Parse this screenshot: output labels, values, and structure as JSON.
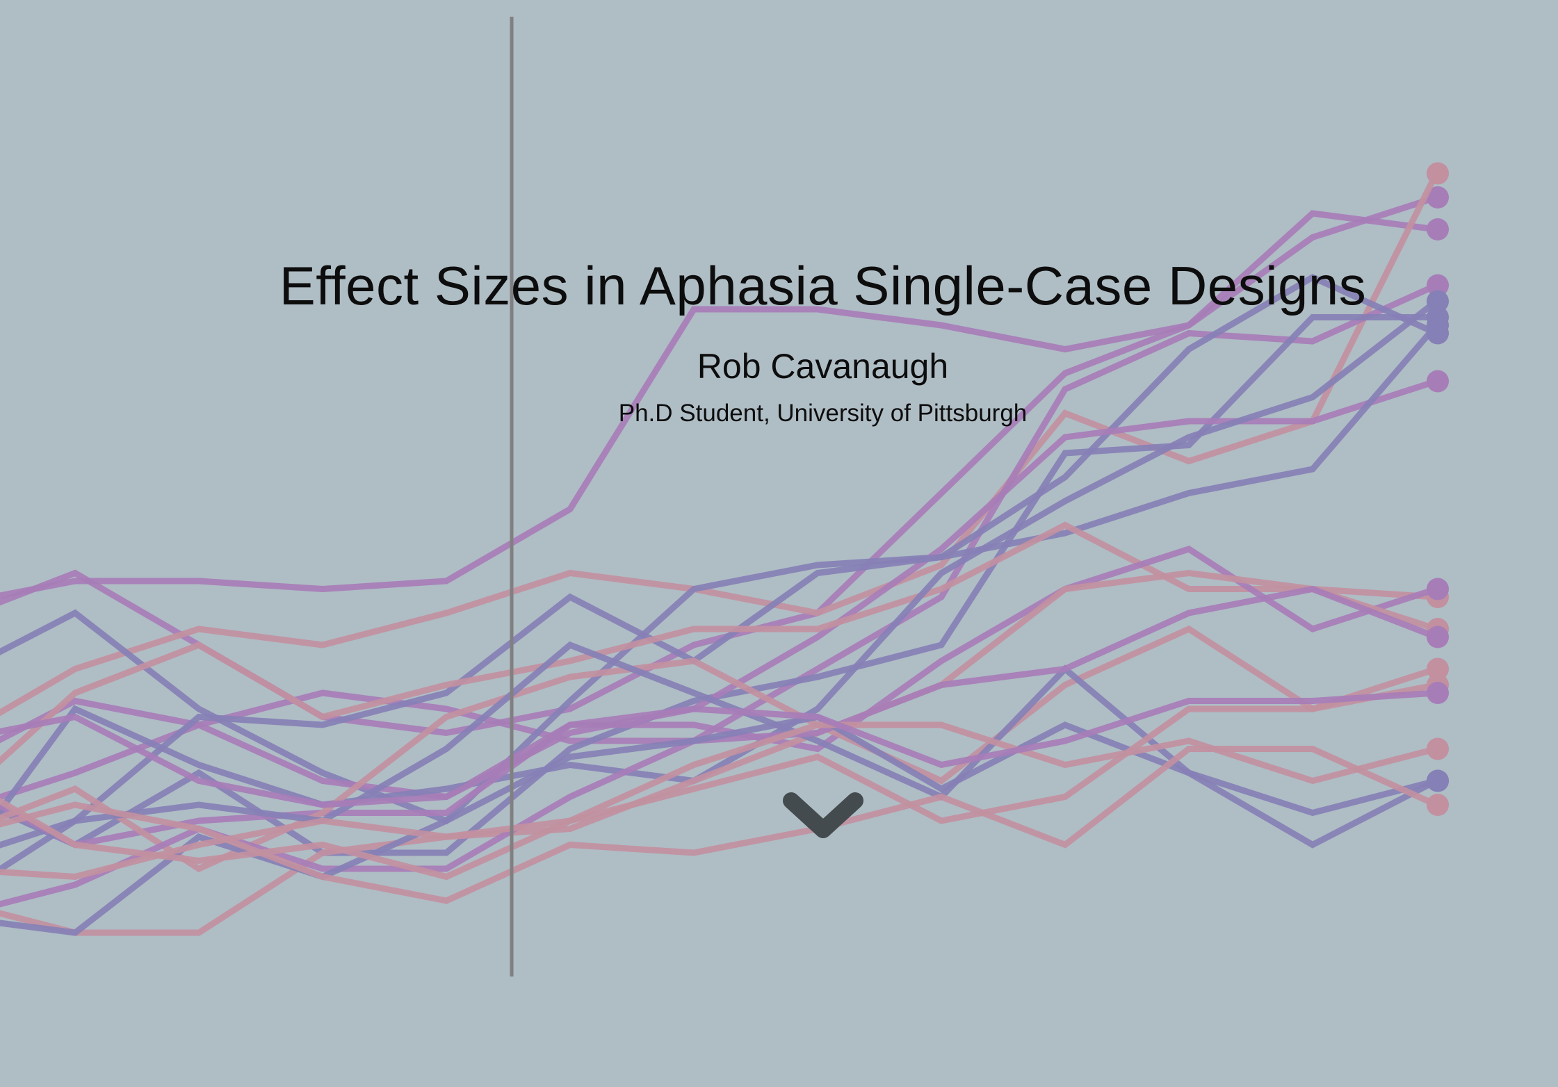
{
  "hero": {
    "title": "Effect Sizes in Aphasia Single-Case Designs",
    "author": "Rob Cavanaugh",
    "affiliation": "Ph.D Student, University of Pittsburgh",
    "scroll_icon": "chevron-down-icon"
  },
  "background_chart": {
    "type": "line",
    "description_role": "decorative single-case design phase lines with baseline/treatment phase divider",
    "x": [
      0,
      1,
      2,
      3,
      4,
      5,
      6,
      7,
      8,
      9,
      10,
      11,
      12
    ],
    "phase_change_after": 4,
    "colors": {
      "purple": "#a77db7",
      "blue": "#8580b5",
      "pink": "#c2909f",
      "divider": "#808080"
    },
    "series": [
      {
        "color": "purple",
        "values": [
          5.3,
          5.6,
          5.6,
          5.5,
          5.6,
          6.5,
          9.0,
          9.0,
          8.8,
          8.5,
          8.8,
          9.9,
          10.4
        ]
      },
      {
        "color": "purple",
        "values": [
          5.1,
          5.7,
          4.8,
          3.9,
          3.7,
          4.0,
          4.8,
          5.2,
          6.7,
          8.2,
          8.8,
          10.2,
          10.0
        ]
      },
      {
        "color": "pink",
        "values": [
          3.6,
          4.5,
          5.0,
          4.8,
          5.2,
          5.7,
          5.5,
          5.2,
          5.8,
          7.7,
          7.1,
          7.6,
          10.7
        ]
      },
      {
        "color": "purple",
        "values": [
          3.3,
          4.1,
          3.8,
          4.2,
          4.0,
          3.6,
          3.6,
          4.5,
          5.4,
          8.0,
          8.7,
          8.6,
          9.3
        ]
      },
      {
        "color": "blue",
        "values": [
          3.0,
          2.3,
          3.2,
          2.2,
          2.2,
          3.5,
          4.1,
          4.4,
          4.8,
          7.2,
          7.3,
          8.9,
          8.9
        ]
      },
      {
        "color": "blue",
        "values": [
          4.4,
          5.2,
          4.0,
          3.2,
          2.6,
          4.1,
          5.5,
          5.8,
          5.9,
          6.9,
          8.5,
          9.4,
          8.7
        ]
      },
      {
        "color": "purple",
        "values": [
          2.7,
          3.2,
          3.8,
          3.1,
          2.9,
          3.8,
          4.0,
          4.9,
          6.0,
          7.4,
          7.6,
          7.6,
          8.1
        ]
      },
      {
        "color": "blue",
        "values": [
          2.1,
          2.6,
          3.9,
          3.8,
          4.2,
          5.4,
          4.6,
          5.7,
          5.9,
          6.2,
          6.7,
          7.0,
          8.8
        ]
      },
      {
        "color": "pink",
        "values": [
          2.8,
          4.2,
          4.8,
          3.9,
          4.3,
          4.6,
          5.0,
          5.0,
          5.5,
          6.3,
          5.5,
          5.5,
          5.4
        ]
      },
      {
        "color": "blue",
        "values": [
          1.9,
          4.0,
          3.3,
          2.8,
          3.0,
          3.3,
          3.1,
          4.0,
          5.7,
          6.6,
          7.4,
          7.9,
          9.1
        ]
      },
      {
        "color": "purple",
        "values": [
          3.1,
          2.3,
          2.6,
          2.7,
          2.7,
          3.8,
          3.8,
          3.5,
          4.6,
          5.5,
          6.0,
          5.0,
          5.5
        ]
      },
      {
        "color": "pink",
        "values": [
          2.4,
          3.0,
          2.0,
          2.7,
          3.9,
          4.4,
          4.6,
          3.8,
          3.1,
          4.3,
          5.0,
          4.0,
          4.5
        ]
      },
      {
        "color": "pink",
        "values": [
          1.6,
          1.2,
          1.2,
          2.2,
          2.4,
          2.5,
          3.1,
          3.7,
          4.3,
          5.5,
          5.7,
          5.5,
          5.0
        ]
      },
      {
        "color": "blue",
        "values": [
          1.6,
          2.6,
          2.8,
          2.6,
          3.5,
          4.8,
          4.2,
          3.6,
          2.9,
          4.5,
          3.2,
          2.7,
          3.1
        ]
      },
      {
        "color": "purple",
        "values": [
          1.4,
          1.8,
          2.5,
          2.0,
          2.0,
          2.9,
          3.6,
          3.7,
          4.3,
          4.5,
          5.2,
          5.5,
          4.9
        ]
      },
      {
        "color": "blue",
        "values": [
          1.4,
          1.2,
          2.4,
          1.9,
          2.6,
          3.4,
          3.6,
          3.9,
          3.0,
          3.8,
          3.2,
          2.3,
          3.1
        ]
      },
      {
        "color": "pink",
        "values": [
          3.2,
          2.3,
          2.1,
          2.3,
          1.9,
          2.6,
          3.0,
          3.4,
          2.6,
          2.9,
          4.0,
          4.0,
          4.3
        ]
      },
      {
        "color": "pink",
        "values": [
          2.0,
          1.9,
          2.3,
          2.6,
          2.4,
          2.6,
          3.3,
          3.8,
          3.8,
          3.3,
          3.6,
          3.1,
          3.5
        ]
      },
      {
        "color": "purple",
        "values": [
          3.6,
          3.9,
          3.1,
          2.8,
          2.9,
          3.7,
          4.0,
          3.9,
          3.3,
          3.6,
          4.1,
          4.1,
          4.2
        ]
      },
      {
        "color": "pink",
        "values": [
          2.4,
          2.8,
          2.5,
          1.9,
          1.6,
          2.3,
          2.2,
          2.5,
          2.9,
          2.3,
          3.5,
          3.5,
          2.8
        ]
      }
    ]
  }
}
